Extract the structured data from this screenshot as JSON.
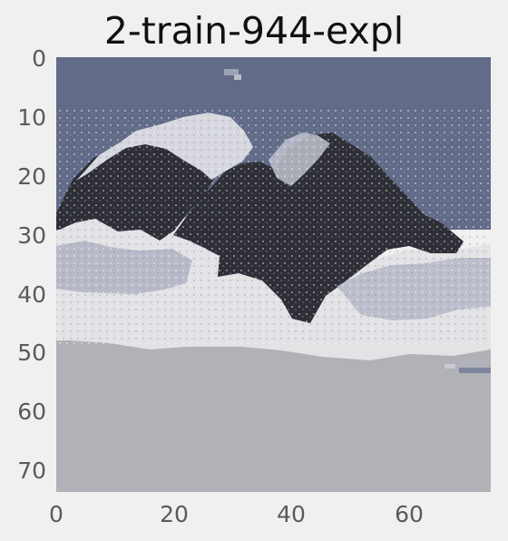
{
  "figure": {
    "title": "2-train-944-expl"
  },
  "image_panel": {
    "x_ticks": [
      "0",
      "20",
      "40",
      "60"
    ],
    "y_ticks": [
      "0",
      "10",
      "20",
      "30",
      "40",
      "50",
      "60",
      "70"
    ],
    "extent": {
      "x": [
        0,
        74
      ],
      "y": [
        0,
        74
      ]
    },
    "colors": {
      "background": "#f0f0f0",
      "sky": "#626c89",
      "rock": "#2e2f37",
      "snow": "#e3e3e6",
      "water": "#b1b2b7",
      "shadow": "#a7abbd"
    }
  }
}
